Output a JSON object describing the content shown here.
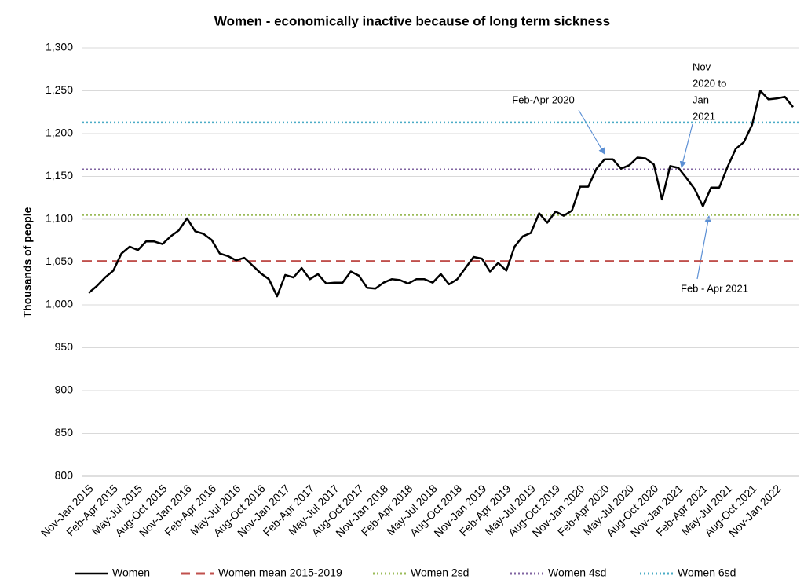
{
  "chart_data": {
    "type": "line",
    "title": "Women - economically inactive because of long term sickness",
    "y_label": "Thousands of people",
    "categories": [
      "Nov-Jan 2015",
      null,
      null,
      "Feb-Apr 2015",
      null,
      null,
      "May-Jul 2015",
      null,
      null,
      "Aug-Oct 2015",
      null,
      null,
      "Nov-Jan 2016",
      null,
      null,
      "Feb-Apr 2016",
      null,
      null,
      "May-Jul 2016",
      null,
      null,
      "Aug-Oct 2016",
      null,
      null,
      "Nov-Jan 2017",
      null,
      null,
      "Feb-Apr 2017",
      null,
      null,
      "May-Jul 2017",
      null,
      null,
      "Aug-Oct 2017",
      null,
      null,
      "Nov-Jan 2018",
      null,
      null,
      "Feb-Apr 2018",
      null,
      null,
      "May-Jul 2018",
      null,
      null,
      "Aug-Oct 2018",
      null,
      null,
      "Nov-Jan 2019",
      null,
      null,
      "Feb-Apr 2019",
      null,
      null,
      "May-Jul 2019",
      null,
      null,
      "Aug-Oct 2019",
      null,
      null,
      "Nov-Jan 2020",
      null,
      null,
      "Feb-Apr 2020",
      null,
      null,
      "May-Jul 2020",
      null,
      null,
      "Aug-Oct 2020",
      null,
      null,
      "Nov-Jan 2021",
      null,
      null,
      "Feb-Apr 2021",
      null,
      null,
      "May-Jul 2021",
      null,
      null,
      "Aug-Oct 2021",
      null,
      null,
      "Nov-Jan 2022",
      null,
      null
    ],
    "series": [
      {
        "name": "Women",
        "color": "#000000",
        "values": [
          1014,
          1022,
          1032,
          1040,
          1060,
          1068,
          1064,
          1074,
          1074,
          1071,
          1080,
          1087,
          1101,
          1086,
          1083,
          1076,
          1060,
          1057,
          1052,
          1055,
          1046,
          1037,
          1030,
          1010,
          1035,
          1032,
          1043,
          1030,
          1036,
          1025,
          1026,
          1026,
          1039,
          1034,
          1020,
          1019,
          1026,
          1030,
          1029,
          1025,
          1030,
          1030,
          1026,
          1036,
          1024,
          1030,
          1043,
          1056,
          1054,
          1039,
          1049,
          1040,
          1068,
          1080,
          1084,
          1107,
          1096,
          1109,
          1104,
          1110,
          1138,
          1138,
          1159,
          1170,
          1170,
          1159,
          1163,
          1172,
          1171,
          1164,
          1123,
          1162,
          1160,
          1148,
          1135,
          1115,
          1137,
          1137,
          1161,
          1182,
          1190,
          1210,
          1250,
          1240,
          1241,
          1243,
          1231
        ]
      }
    ],
    "reference_lines": [
      {
        "name": "Women mean 2015-2019",
        "color": "#c0504d",
        "style": "dashed",
        "value": 1051
      },
      {
        "name": "Women 2sd",
        "color": "#9bbb59",
        "style": "dotted",
        "value": 1105
      },
      {
        "name": "Women 4sd",
        "color": "#8064a2",
        "style": "dotted",
        "value": 1158
      },
      {
        "name": "Women 6sd",
        "color": "#4bacc6",
        "style": "dotted",
        "value": 1213
      }
    ],
    "ylim": [
      800,
      1300
    ],
    "yticks": [
      800,
      850,
      900,
      950,
      {
        "value": 1000,
        "label": "1,000"
      },
      {
        "value": 1050,
        "label": "1,050"
      },
      {
        "value": 1100,
        "label": "1,100"
      },
      {
        "value": 1150,
        "label": "1,150"
      },
      {
        "value": 1200,
        "label": "1,200"
      },
      {
        "value": 1250,
        "label": "1,250"
      },
      {
        "value": 1300,
        "label": "1,300"
      }
    ],
    "grid": true,
    "annotations": [
      {
        "lines": [
          "Feb-Apr 2020"
        ]
      },
      {
        "lines": [
          "Nov",
          "2020 to",
          "Jan",
          "2021"
        ]
      },
      {
        "lines": [
          "Feb - Apr 2021"
        ]
      }
    ]
  }
}
